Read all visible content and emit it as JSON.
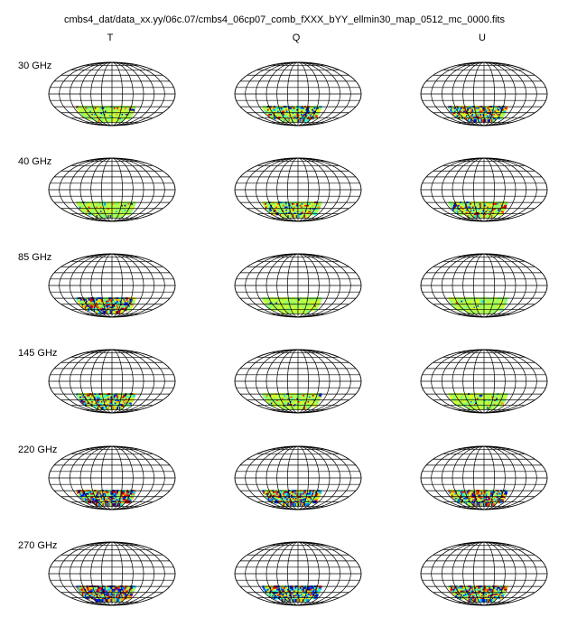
{
  "title": "cmbs4_dat/data_xx.yy/06c.07/cmbs4_06cp07_comb_fXXX_bYY_ellmin30_map_0512_mc_0000.fits",
  "columns": [
    "T",
    "Q",
    "U"
  ],
  "rows": [
    "30 GHz",
    "40 GHz",
    "85 GHz",
    "145 GHz",
    "220 GHz",
    "270 GHz"
  ]
}
